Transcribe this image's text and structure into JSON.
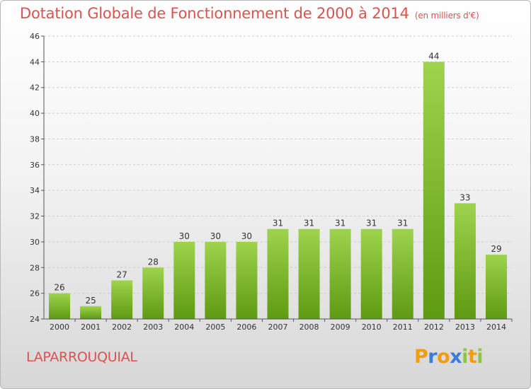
{
  "title": "Dotation Globale de Fonctionnement de 2000 à 2014",
  "unit_note": "(en milliers d'€)",
  "commune": "LAPARROUQUIAL",
  "logo": {
    "text": "Proxiti",
    "letters": [
      {
        "ch": "P",
        "color": "#f39c12"
      },
      {
        "ch": "r",
        "color": "#3b7dd8"
      },
      {
        "ch": "o",
        "color": "#f39c12"
      },
      {
        "ch": "x",
        "color": "#3b7dd8"
      },
      {
        "ch": "i",
        "color": "#8dc63f"
      },
      {
        "ch": "t",
        "color": "#f39c12"
      },
      {
        "ch": "i",
        "color": "#8dc63f"
      }
    ]
  },
  "colors": {
    "title": "#d9534f",
    "bar_top": "#9ed34e",
    "bar_bottom": "#5e9a12",
    "axis": "#555555",
    "grid": "#cccccc"
  },
  "chart_data": {
    "type": "bar",
    "categories": [
      "2000",
      "2001",
      "2002",
      "2003",
      "2004",
      "2005",
      "2006",
      "2007",
      "2008",
      "2009",
      "2010",
      "2011",
      "2012",
      "2013",
      "2014"
    ],
    "values": [
      26,
      25,
      27,
      28,
      30,
      30,
      30,
      31,
      31,
      31,
      31,
      31,
      44,
      33,
      29
    ],
    "ylim": [
      24,
      46
    ],
    "yticks": [
      24,
      26,
      28,
      30,
      32,
      34,
      36,
      38,
      40,
      42,
      44,
      46
    ],
    "grid": "horizontal dashed",
    "data_labels": true,
    "xlabel": "",
    "ylabel": ""
  }
}
